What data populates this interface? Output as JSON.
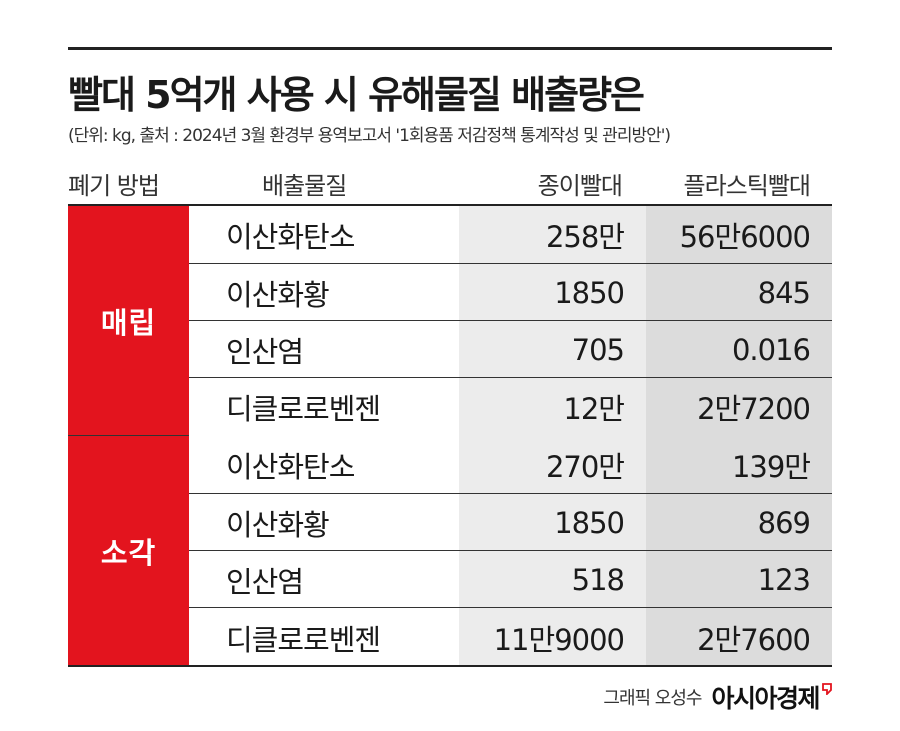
{
  "title": "빨대 5억개 사용 시 유해물질 배출량은",
  "subtitle": "(단위: kg, 출처 : 2024년 3월 환경부 용역보고서 '1회용품 저감정책 통계작성 및 관리방안')",
  "headers": {
    "method": "폐기 방법",
    "substance": "배출물질",
    "paper": "종이빨대",
    "plastic": "플라스틱빨대"
  },
  "groups": [
    {
      "label": "매립",
      "rows": [
        {
          "substance": "이산화탄소",
          "paper": "258만",
          "plastic": "56만6000"
        },
        {
          "substance": "이산화황",
          "paper": "1850",
          "plastic": "845"
        },
        {
          "substance": "인산염",
          "paper": "705",
          "plastic": "0.016"
        },
        {
          "substance": "디클로로벤젠",
          "paper": "12만",
          "plastic": "2만7200"
        }
      ]
    },
    {
      "label": "소각",
      "rows": [
        {
          "substance": "이산화탄소",
          "paper": "270만",
          "plastic": "139만"
        },
        {
          "substance": "이산화황",
          "paper": "1850",
          "plastic": "869"
        },
        {
          "substance": "인산염",
          "paper": "518",
          "plastic": "123"
        },
        {
          "substance": "디클로로벤젠",
          "paper": "11만9000",
          "plastic": "2만7600"
        }
      ]
    }
  ],
  "footer": {
    "credit": "그래픽 오성수",
    "brand": "아시아경제"
  },
  "colors": {
    "accent": "#e3141e",
    "paper_col": "#ececec",
    "plastic_col": "#dcdcdc"
  }
}
